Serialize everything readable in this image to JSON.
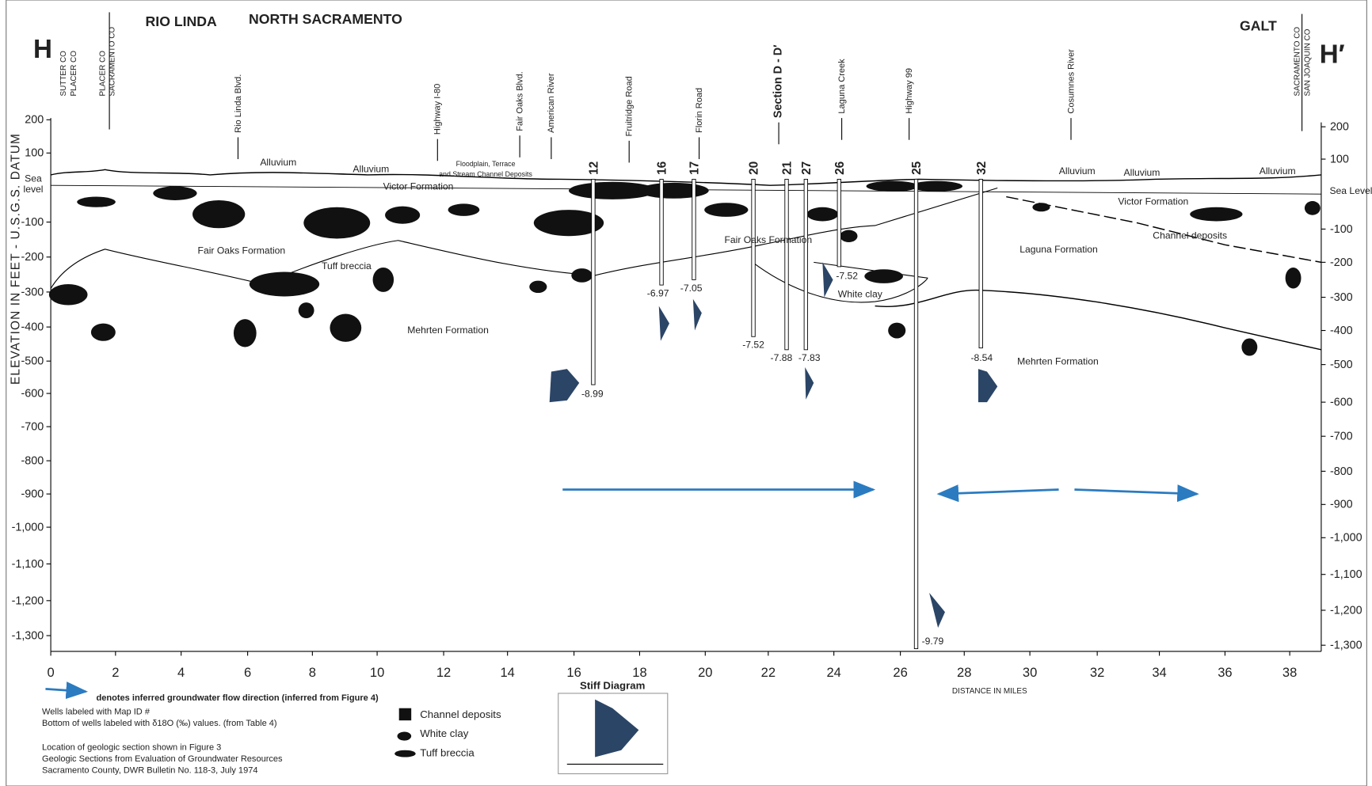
{
  "header": {
    "left_marker": "H",
    "right_marker": "H′",
    "places": [
      "RIO LINDA",
      "NORTH SACRAMENTO",
      "GALT"
    ]
  },
  "boundaries": [
    [
      "SUTTER CO",
      "PLACER CO"
    ],
    [
      "PLACER CO",
      "SACRAMENTO CO"
    ],
    [
      "SACRAMENTO CO",
      "SAN JOAQUIN CO"
    ]
  ],
  "landmarks": [
    "Rio Linda Blvd.",
    "Highway I-80",
    "Fair Oaks Blvd.",
    "American River",
    "Fruitridge Road",
    "Florin Road",
    "Section D - D′",
    "Laguna Creek",
    "Highway 99",
    "Cosumnes River"
  ],
  "wells": [
    {
      "id": "12",
      "d18o": "-8.99"
    },
    {
      "id": "16",
      "d18o": "-6.97"
    },
    {
      "id": "17",
      "d18o": "-7.05"
    },
    {
      "id": "20",
      "d18o": "-7.52"
    },
    {
      "id": "21",
      "d18o": "-7.88"
    },
    {
      "id": "27",
      "d18o": "-7.83"
    },
    {
      "id": "26",
      "d18o": "-7.52"
    },
    {
      "id": "25",
      "d18o": "-9.79"
    },
    {
      "id": "32",
      "d18o": "-8.54"
    }
  ],
  "units": [
    [
      "Alluvium"
    ],
    [
      "Alluvium"
    ],
    [
      "Victor Formation"
    ],
    [
      "Floodplain, Terrace",
      "and Stream Channel Deposits"
    ],
    [
      "Fair Oaks Formation"
    ],
    [
      "Tuff breccia"
    ],
    [
      "Mehrten Formation"
    ],
    [
      "Fair Oaks Formation"
    ],
    [
      "White clay"
    ],
    [
      "Alluvium"
    ],
    [
      "Alluvium"
    ],
    [
      "Alluvium"
    ],
    [
      "Victor Formation"
    ],
    [
      "Channel deposits"
    ],
    [
      "Laguna Formation"
    ],
    [
      "Mehrten Formation"
    ],
    [
      "Sea",
      "level"
    ],
    [
      "Sea Level"
    ]
  ],
  "y_axis": {
    "title": "ELEVATION IN FEET - U.S.G.S. DATUM",
    "left_ticks": [
      "200",
      "100",
      "-100",
      "-200",
      "-300",
      "-400",
      "-500",
      "-600",
      "-700",
      "-800",
      "-900",
      "-1,000",
      "-1,100",
      "-1,200",
      "-1,300"
    ],
    "right_ticks": [
      "200",
      "100",
      "-100",
      "-200",
      "-300",
      "-400",
      "-500",
      "-600",
      "-700",
      "-800",
      "-900",
      "-1,000",
      "-1,100",
      "-1,200",
      "-1,300"
    ]
  },
  "x_axis": {
    "title": "DISTANCE IN MILES",
    "ticks": [
      "0",
      "2",
      "4",
      "6",
      "8",
      "10",
      "12",
      "14",
      "16",
      "18",
      "20",
      "22",
      "24",
      "26",
      "28",
      "30",
      "32",
      "34",
      "36",
      "38"
    ]
  },
  "legend": {
    "arrow_text": "denotes inferred groundwater flow direction (inferred from Figure 4)",
    "notes": [
      "Wells labeled with Map ID #",
      "Bottom of wells labeled with δ18O (‰) values. (from Table 4)",
      "Location of geologic section shown in Figure 3",
      "Geologic Sections from Evaluation of Groundwater Resources",
      "Sacramento County, DWR Bulletin No. 118-3, July 1974"
    ],
    "items": [
      "Channel deposits",
      "White clay",
      "Tuff breccia"
    ],
    "stiff_title": "Stiff Diagram"
  }
}
